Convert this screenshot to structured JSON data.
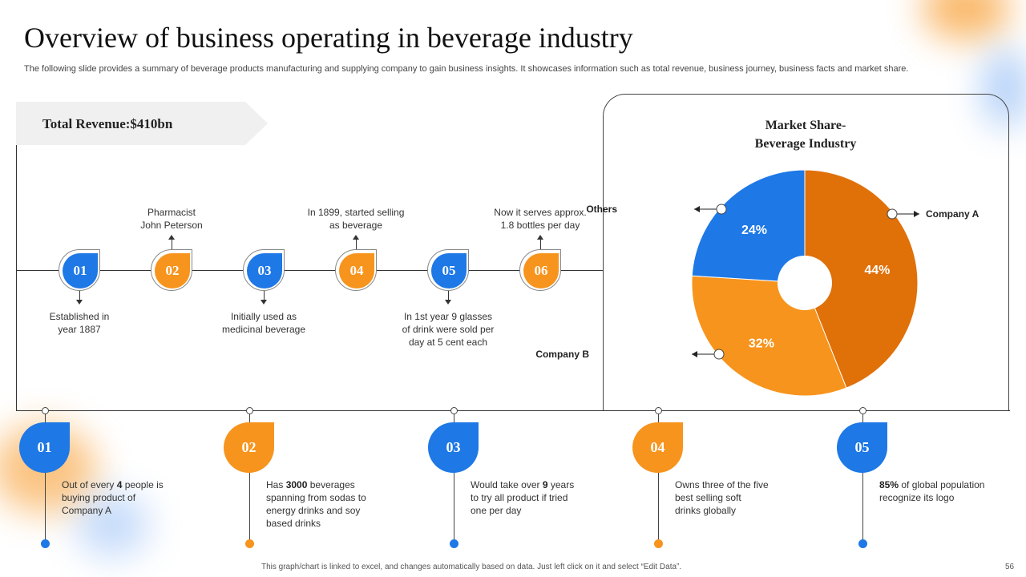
{
  "title": "Overview of business operating in beverage industry",
  "subtitle": "The following slide provides a summary of beverage products manufacturing and supplying company to gain business insights. It showcases information such as total revenue, business journey, business facts and market share.",
  "revenue": "Total Revenue:$410bn",
  "colors": {
    "blue": "#1e78e6",
    "orange": "#f7941d",
    "dark_orange": "#e07008"
  },
  "timeline": [
    {
      "num": "01",
      "text_lines": [
        "Established in",
        "year 1887"
      ],
      "color": "blue"
    },
    {
      "num": "02",
      "text_lines": [
        "Pharmacist",
        "John Peterson"
      ],
      "color": "orange"
    },
    {
      "num": "03",
      "text_lines": [
        "Initially used as",
        "medicinal beverage"
      ],
      "color": "blue"
    },
    {
      "num": "04",
      "text_lines": [
        "In 1899, started selling",
        "as beverage"
      ],
      "color": "orange"
    },
    {
      "num": "05",
      "text_lines": [
        "In 1st year 9 glasses",
        "of drink were sold per",
        "day at 5 cent each"
      ],
      "color": "blue"
    },
    {
      "num": "06",
      "text_lines": [
        "Now it serves approx.",
        "1.8 bottles per day"
      ],
      "color": "orange"
    }
  ],
  "chart_data": {
    "type": "pie",
    "title": "Market Share- Beverage Industry",
    "title_lines": [
      "Market Share-",
      "Beverage Industry"
    ],
    "categories": [
      "Company A",
      "Company B",
      "Others"
    ],
    "values": [
      44,
      32,
      24
    ],
    "value_labels": [
      "44%",
      "32%",
      "24%"
    ],
    "colors": [
      "#e07008",
      "#f7941d",
      "#1e78e6"
    ]
  },
  "facts": [
    {
      "num": "01",
      "color": "blue",
      "lines": [
        [
          {
            "t": "Out of every "
          },
          {
            "t": "4",
            "b": true
          },
          {
            "t": " people is"
          }
        ],
        [
          {
            "t": "buying product of"
          }
        ],
        [
          {
            "t": "Company A"
          }
        ]
      ]
    },
    {
      "num": "02",
      "color": "orange",
      "lines": [
        [
          {
            "t": "Has "
          },
          {
            "t": "3000",
            "b": true
          },
          {
            "t": " beverages"
          }
        ],
        [
          {
            "t": "spanning from sodas to"
          }
        ],
        [
          {
            "t": "energy drinks and soy"
          }
        ],
        [
          {
            "t": "based drinks"
          }
        ]
      ]
    },
    {
      "num": "03",
      "color": "blue",
      "lines": [
        [
          {
            "t": "Would take over "
          },
          {
            "t": "9",
            "b": true
          },
          {
            "t": " years"
          }
        ],
        [
          {
            "t": "to try all product if tried"
          }
        ],
        [
          {
            "t": "one per day"
          }
        ]
      ]
    },
    {
      "num": "04",
      "color": "orange",
      "lines": [
        [
          {
            "t": "Owns three of the five"
          }
        ],
        [
          {
            "t": "best selling soft"
          }
        ],
        [
          {
            "t": "drinks globally"
          }
        ]
      ]
    },
    {
      "num": "05",
      "color": "blue",
      "lines": [
        [
          {
            "t": "85%",
            "b": true
          },
          {
            "t": " of global population"
          }
        ],
        [
          {
            "t": "recognize its logo"
          }
        ]
      ]
    }
  ],
  "footer": "This graph/chart is linked to excel, and changes automatically based on data. Just left click on it and select “Edit Data”.",
  "page_number": "56"
}
